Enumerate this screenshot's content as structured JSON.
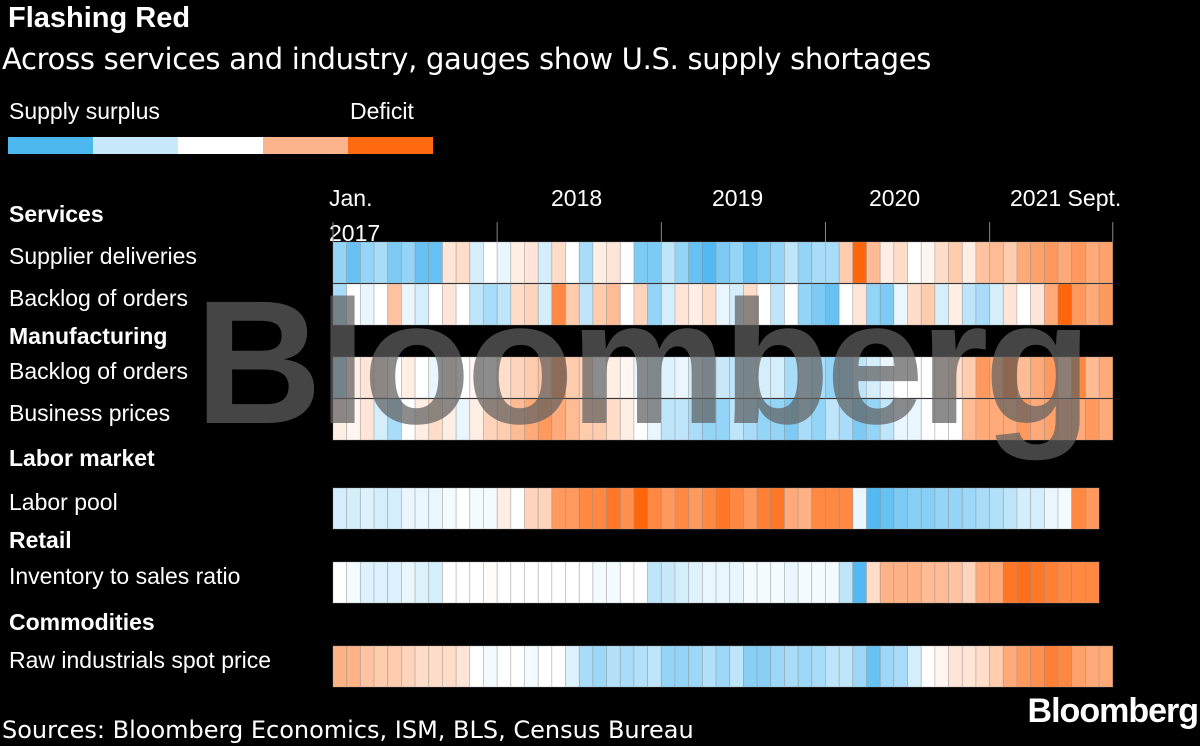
{
  "chart_data": {
    "type": "heatmap",
    "title": "Flashing Red",
    "subtitle": "Across services and industry, gauges show U.S. supply shortages",
    "legend": {
      "low_label": "Supply surplus",
      "high_label": "Deficit",
      "colors": [
        "#4db8f0",
        "#c8e8fb",
        "#ffffff",
        "#fbb48c",
        "#ff6a10"
      ]
    },
    "x_axis": {
      "start": "Jan. 2017",
      "end": "Sept. 2021",
      "labels": [
        "Jan.",
        "2017",
        "2018",
        "2019",
        "2020",
        "2021 Sept."
      ]
    },
    "value_scale": {
      "min": -1,
      "max": 1,
      "note_low": "Supply surplus",
      "note_high": "Deficit"
    },
    "groups": [
      {
        "name": "Services",
        "rows": [
          {
            "name": "Supplier deliveries",
            "values": [
              -0.5,
              -0.7,
              -0.5,
              -0.4,
              -0.6,
              -0.5,
              -0.7,
              -0.7,
              0.15,
              0.2,
              -0.2,
              0,
              -0.1,
              0.1,
              0.15,
              -0.2,
              0.2,
              0,
              -0.4,
              0.1,
              0.15,
              0,
              -0.6,
              -0.6,
              -0.3,
              -0.5,
              -0.7,
              -0.8,
              -0.6,
              -0.5,
              -0.7,
              -0.6,
              -0.5,
              -0.3,
              -0.5,
              -0.4,
              -0.4,
              0.3,
              0.9,
              0.4,
              0.1,
              0.2,
              0,
              0.05,
              0.2,
              0.3,
              0.1,
              0.35,
              0.4,
              0.3,
              0.5,
              0.55,
              0.6,
              0.5,
              0.6,
              0.5,
              0.55
            ]
          },
          {
            "name": "Backlog of orders",
            "values": [
              -0.4,
              0,
              -0.1,
              0,
              0.35,
              -0.1,
              -0.2,
              0,
              0.15,
              0,
              -0.3,
              -0.4,
              -0.3,
              0.2,
              0.25,
              -0.2,
              0.7,
              0.3,
              -0.3,
              0.3,
              0.4,
              0,
              0.25,
              -0.5,
              -0.2,
              0.15,
              0.1,
              0.2,
              -0.1,
              -0.2,
              0.2,
              0,
              -0.3,
              0,
              -0.5,
              -0.6,
              -0.7,
              0,
              0.15,
              -0.5,
              -0.6,
              -0.1,
              0.2,
              0.3,
              -0.2,
              0.1,
              -0.3,
              -0.4,
              -0.2,
              0.15,
              0,
              0.15,
              0.5,
              0.9,
              0.6,
              0.5,
              0.6
            ]
          }
        ]
      },
      {
        "name": "Manufacturing",
        "rows": [
          {
            "name": "Backlog of orders",
            "values": [
              -0.4,
              0.1,
              0.15,
              0.1,
              0,
              0.1,
              0,
              -0.1,
              0.1,
              0,
              0.05,
              0,
              0.2,
              0.25,
              0.3,
              0.35,
              0.7,
              0.3,
              0.25,
              0,
              0.1,
              0.05,
              -0.1,
              -0.2,
              -0.15,
              -0.1,
              -0.2,
              -0.3,
              -0.25,
              -0.3,
              -0.3,
              -0.2,
              -0.2,
              -0.4,
              -0.3,
              -0.4,
              -0.5,
              -0.5,
              -0.3,
              -0.2,
              -0.1,
              0,
              0,
              0,
              0.1,
              0.2,
              0.3,
              0.6,
              0.5,
              0.8,
              0.4,
              0.5,
              0.6,
              0.3,
              0.7,
              0.4,
              0.5
            ]
          },
          {
            "name": "Business prices",
            "values": [
              0.1,
              0.05,
              0.15,
              -0.2,
              -0.4,
              0,
              0.1,
              0.2,
              0.1,
              -0.1,
              0.1,
              0.25,
              0.3,
              0.4,
              0.5,
              0.6,
              0.5,
              0.4,
              0.3,
              0.3,
              0.2,
              0.1,
              0,
              -0.1,
              -0.3,
              -0.3,
              -0.4,
              -0.5,
              -0.5,
              -0.3,
              -0.4,
              -0.5,
              -0.5,
              -0.6,
              -0.4,
              -0.5,
              -0.3,
              -0.4,
              -0.6,
              -0.5,
              -0.3,
              -0.1,
              -0.1,
              0,
              0,
              0,
              0.4,
              0.5,
              0.5,
              0.5,
              0.6,
              0.5,
              0.55,
              0.5,
              0.5,
              0.6,
              0.5
            ]
          }
        ]
      },
      {
        "name": "Labor market",
        "rows": [
          {
            "name": "Labor pool",
            "values": [
              -0.2,
              -0.2,
              -0.15,
              -0.2,
              -0.2,
              -0.1,
              -0.1,
              -0.1,
              -0.05,
              0,
              -0.05,
              -0.05,
              0.1,
              0,
              0.25,
              0.25,
              0.6,
              0.6,
              0.7,
              0.7,
              0.8,
              0.65,
              0.9,
              0.7,
              0.6,
              0.7,
              0.6,
              0.7,
              0.8,
              0.7,
              0.6,
              0.75,
              0.8,
              0.5,
              0.45,
              0.7,
              0.7,
              0.7,
              -0.1,
              -0.8,
              -0.7,
              -0.6,
              -0.55,
              -0.55,
              -0.5,
              -0.5,
              -0.45,
              -0.4,
              -0.35,
              -0.3,
              -0.2,
              -0.2,
              -0.1,
              -0.05,
              0.7,
              0.6
            ]
          }
        ]
      },
      {
        "name": "Retail",
        "rows": [
          {
            "name": "Inventory to sales ratio",
            "values": [
              0,
              -0.05,
              -0.15,
              -0.15,
              -0.15,
              -0.1,
              -0.15,
              -0.2,
              0,
              0,
              0,
              0.02,
              0,
              0,
              0,
              0,
              0,
              0,
              0,
              -0.05,
              -0.05,
              0,
              0,
              -0.3,
              -0.25,
              -0.2,
              -0.15,
              -0.1,
              -0.1,
              -0.1,
              -0.05,
              -0.05,
              -0.05,
              -0.1,
              -0.05,
              -0.05,
              -0.05,
              -0.3,
              -0.8,
              0.2,
              0.45,
              0.45,
              0.45,
              0.4,
              0.4,
              0.35,
              0.25,
              0.5,
              0.5,
              0.8,
              0.85,
              0.8,
              0.75,
              0.7,
              0.7,
              0.7
            ]
          }
        ]
      },
      {
        "name": "Commodities",
        "rows": [
          {
            "name": "Raw industrials spot price",
            "values": [
              0.45,
              0.45,
              0.35,
              0.3,
              0.3,
              0.25,
              0.2,
              0.2,
              0.2,
              0.15,
              0,
              -0.05,
              0,
              0,
              -0.05,
              0,
              0,
              -0.15,
              -0.4,
              -0.45,
              -0.35,
              -0.4,
              -0.35,
              -0.3,
              -0.5,
              -0.5,
              -0.45,
              -0.35,
              -0.45,
              -0.3,
              -0.55,
              -0.55,
              -0.45,
              -0.4,
              -0.45,
              -0.4,
              -0.3,
              -0.3,
              -0.45,
              -0.7,
              -0.45,
              -0.4,
              -0.2,
              0,
              0.05,
              0.15,
              0.15,
              0.2,
              0.3,
              0.5,
              0.6,
              0.65,
              0.75,
              0.7,
              0.55,
              0.5,
              0.5
            ]
          }
        ]
      }
    ]
  },
  "footer": {
    "source": "Sources: Bloomberg Economics, ISM, BLS, Census Bureau",
    "logo": "Bloomberg"
  },
  "watermark": "Bloomberg"
}
